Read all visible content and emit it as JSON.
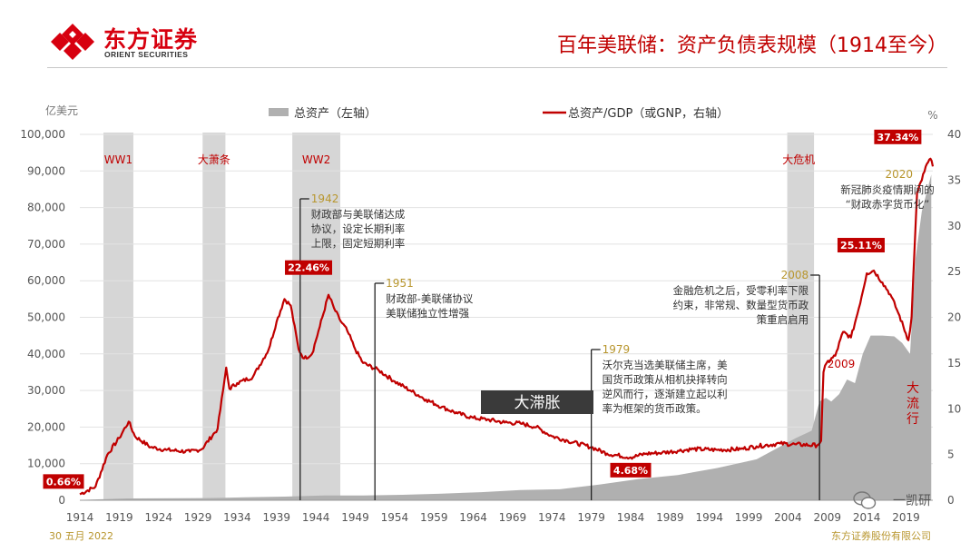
{
  "header": {
    "logo_cn": "东方证券",
    "logo_en": "ORIENT SECURITIES",
    "title": "百年美联储：资产负债表规模（1914至今）"
  },
  "footer": {
    "date": "30 五月 2022",
    "source": "东方证券股份有限公司"
  },
  "watermark": "一凯研",
  "colors": {
    "ratio_line": "#c00000",
    "assets_area": "#b0b0b0",
    "title": "#c00000",
    "shade": "#d6d6d6",
    "accent": "#b8962e"
  },
  "chart_data": {
    "type": "area",
    "left_unit": "亿美元",
    "right_unit": "%",
    "legend": {
      "assets": "总资产（左轴）",
      "ratio": "总资产/GDP（或GNP，右轴）"
    },
    "x_ticks": [
      "1914",
      "1919",
      "1924",
      "1929",
      "1934",
      "1939",
      "1944",
      "1949",
      "1954",
      "1959",
      "1964",
      "1969",
      "1974",
      "1979",
      "1984",
      "1989",
      "1994",
      "1999",
      "2004",
      "2009",
      "2014",
      "2019"
    ],
    "xlim": [
      1914,
      2022.4
    ],
    "y_left": {
      "ticks": [
        "0",
        "10,000",
        "20,000",
        "30,000",
        "40,000",
        "50,000",
        "60,000",
        "70,000",
        "80,000",
        "90,000",
        "100,000"
      ],
      "lim": [
        0,
        100000
      ]
    },
    "y_right": {
      "ticks": [
        "0",
        "5",
        "10",
        "15",
        "20",
        "25",
        "30",
        "35",
        "40"
      ],
      "lim": [
        0,
        40
      ]
    },
    "shaded_periods": [
      {
        "label": "WW1",
        "start": 1917.0,
        "end": 1920.8
      },
      {
        "label": "大萧条",
        "start": 1929.6,
        "end": 1932.5
      },
      {
        "label": "WW2",
        "start": 1941.0,
        "end": 1947.1
      },
      {
        "label": "大危机",
        "start": 2003.9,
        "end": 2007.3
      }
    ],
    "series": [
      {
        "name": "总资产（左轴）",
        "points": [
          [
            1914,
            100
          ],
          [
            1920,
            500
          ],
          [
            1930,
            600
          ],
          [
            1935,
            800
          ],
          [
            1940,
            1000
          ],
          [
            1945,
            1300
          ],
          [
            1950,
            1300
          ],
          [
            1955,
            1500
          ],
          [
            1960,
            1800
          ],
          [
            1965,
            2200
          ],
          [
            1970,
            2800
          ],
          [
            1975,
            3000
          ],
          [
            1980,
            4300
          ],
          [
            1985,
            5800
          ],
          [
            1990,
            6900
          ],
          [
            1995,
            8800
          ],
          [
            2000,
            11200
          ],
          [
            2005,
            17000
          ],
          [
            2007,
            19000
          ],
          [
            2008,
            27000
          ],
          [
            2008.8,
            28000
          ],
          [
            2009.5,
            27000
          ],
          [
            2010.5,
            29000
          ],
          [
            2011.5,
            33000
          ],
          [
            2012.5,
            32000
          ],
          [
            2013.5,
            40000
          ],
          [
            2014.5,
            45000
          ],
          [
            2016,
            45000
          ],
          [
            2017.5,
            44800
          ],
          [
            2018.5,
            43000
          ],
          [
            2019.5,
            40000
          ],
          [
            2020.2,
            66000
          ],
          [
            2021,
            79000
          ],
          [
            2022.2,
            89000
          ]
        ]
      },
      {
        "name": "总资产/GDP（或GNP，右轴）",
        "points": [
          [
            1914,
            0.66
          ],
          [
            1916,
            1.5
          ],
          [
            1917.5,
            5
          ],
          [
            1919,
            6.8
          ],
          [
            1920.2,
            8.6
          ],
          [
            1921,
            7
          ],
          [
            1923,
            5.8
          ],
          [
            1925,
            5.5
          ],
          [
            1928,
            5.3
          ],
          [
            1929.5,
            5.6
          ],
          [
            1931.5,
            7.8
          ],
          [
            1932.2,
            12
          ],
          [
            1932.6,
            14.5
          ],
          [
            1933,
            12.2
          ],
          [
            1934,
            12.8
          ],
          [
            1936,
            13.5
          ],
          [
            1938,
            16.5
          ],
          [
            1939,
            19.5
          ],
          [
            1940,
            22
          ],
          [
            1940.8,
            21.3
          ],
          [
            1941.8,
            16.5
          ],
          [
            1942.5,
            15.5
          ],
          [
            1943.5,
            16
          ],
          [
            1944.5,
            19
          ],
          [
            1945.6,
            22.46
          ],
          [
            1946.3,
            21
          ],
          [
            1947,
            19.8
          ],
          [
            1948,
            18.5
          ],
          [
            1949,
            16.5
          ],
          [
            1950,
            15
          ],
          [
            1952,
            14.2
          ],
          [
            1954,
            13
          ],
          [
            1956,
            12
          ],
          [
            1958,
            11
          ],
          [
            1960,
            10.2
          ],
          [
            1962,
            9.5
          ],
          [
            1964,
            9
          ],
          [
            1966,
            8.8
          ],
          [
            1968,
            8.5
          ],
          [
            1970,
            8.4
          ],
          [
            1972,
            8
          ],
          [
            1974,
            7
          ],
          [
            1976,
            6.5
          ],
          [
            1979,
            5.8
          ],
          [
            1981,
            5.1
          ],
          [
            1984,
            4.68
          ],
          [
            1986,
            5.1
          ],
          [
            1988,
            5.2
          ],
          [
            1990,
            5.4
          ],
          [
            1992,
            5.6
          ],
          [
            1995,
            5.5
          ],
          [
            1998,
            5.6
          ],
          [
            2000,
            5.9
          ],
          [
            2003,
            6.2
          ],
          [
            2005,
            6.1
          ],
          [
            2007.7,
            6.0
          ],
          [
            2008.2,
            6.5
          ],
          [
            2008.5,
            14
          ],
          [
            2008.9,
            15
          ],
          [
            2010,
            15.8
          ],
          [
            2011,
            18.4
          ],
          [
            2012,
            17.8
          ],
          [
            2013,
            21
          ],
          [
            2014,
            24.8
          ],
          [
            2014.9,
            25.11
          ],
          [
            2016,
            23.8
          ],
          [
            2017,
            22.5
          ],
          [
            2018,
            20.5
          ],
          [
            2019.3,
            17.5
          ],
          [
            2019.7,
            20
          ],
          [
            2020.1,
            28
          ],
          [
            2020.4,
            33.7
          ],
          [
            2021,
            35
          ],
          [
            2021.5,
            36.5
          ],
          [
            2022.1,
            37.34
          ],
          [
            2022.4,
            36.5
          ]
        ]
      }
    ],
    "value_labels": [
      {
        "text": "0.66%",
        "x": 1914,
        "y": 0.66
      },
      {
        "text": "22.46%",
        "x": 1945.6,
        "y": 22.46
      },
      {
        "text": "4.68%",
        "x": 1984,
        "y": 4.68
      },
      {
        "text": "25.11%",
        "x": 2014.9,
        "y": 25.11
      },
      {
        "text": "37.34%",
        "x": 2022.1,
        "y": 37.34
      }
    ],
    "events": [
      {
        "year_label": "1942",
        "x": 1942.0,
        "lines": [
          "财政部与美联储达成",
          "协议，设定长期利率",
          "上限，固定短期利率"
        ]
      },
      {
        "year_label": "1951",
        "x": 1951.5,
        "lines": [
          "财政部-美联储协议",
          "美联储独立性增强"
        ]
      },
      {
        "year_label": "1979",
        "x": 1979.0,
        "lines": [
          "沃尔克当选美联储主席，美",
          "国货币政策从相机抉择转向",
          "逆风而行，逐渐建立起以利",
          "率为框架的货币政策。"
        ]
      },
      {
        "year_label": "2008",
        "x": 2008.0,
        "lines": [
          "金融危机之后，受零利率下限",
          "约束，非常规、数量型货币政",
          "策重启启用"
        ]
      },
      {
        "year_label": "2020",
        "x": 2020.0,
        "lines": [
          "新冠肺炎疫情期间的",
          "“财政赤字货币化”"
        ]
      }
    ],
    "text_labels": {
      "stagflation": "大滞胀",
      "pandemic": "大流行",
      "gfc_year": "2009"
    }
  }
}
